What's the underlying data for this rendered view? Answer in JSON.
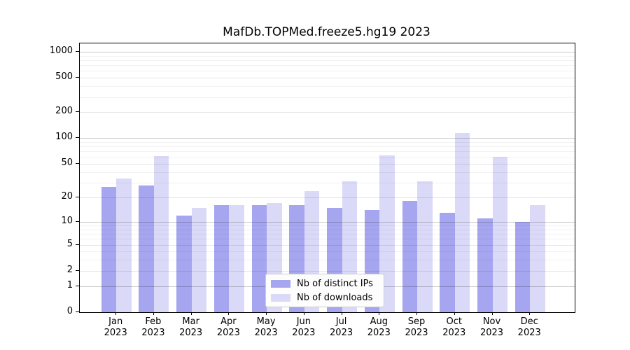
{
  "title": "MafDb.TOPMed.freeze5.hg19 2023",
  "chart_data": {
    "type": "bar",
    "title": "MafDb.TOPMed.freeze5.hg19 2023",
    "categories": [
      "Jan",
      "Feb",
      "Mar",
      "Apr",
      "May",
      "Jun",
      "Jul",
      "Aug",
      "Sep",
      "Oct",
      "Nov",
      "Dec"
    ],
    "year_label": "2023",
    "series": [
      {
        "name": "Nb of distinct IPs",
        "color": "#a5a5f0",
        "values": [
          27,
          28,
          12,
          16,
          16,
          16,
          15,
          14,
          18,
          13,
          11,
          10
        ]
      },
      {
        "name": "Nb of downloads",
        "color": "#dadaf8",
        "values": [
          34,
          62,
          15,
          16,
          17,
          24,
          31,
          63,
          31,
          114,
          61,
          16
        ]
      }
    ],
    "y_ticks": [
      0,
      1,
      2,
      5,
      10,
      20,
      50,
      100,
      200,
      500,
      1000
    ],
    "y_scale": "log10(value+1)",
    "ylim": [
      0,
      1230
    ],
    "xlabel": "",
    "ylabel": "",
    "grid": true,
    "legend_position": "inside-bottom-center"
  },
  "colors": {
    "grid_decade": "rgba(0,0,0,0.20)",
    "grid_major": "rgba(0,0,0,0.10)",
    "grid_minor": "rgba(0,0,0,0.05)",
    "axis": "#000000"
  }
}
